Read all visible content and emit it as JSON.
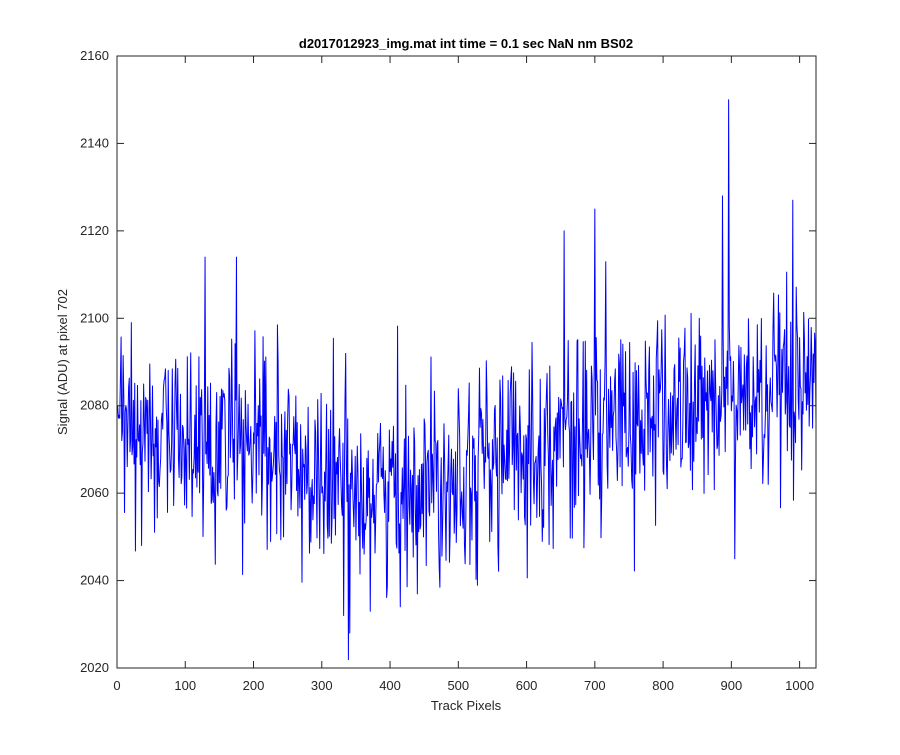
{
  "chart_data": {
    "type": "line",
    "title": "d2017012923_img.mat int time = 0.1 sec  NaN nm BS02",
    "xlabel": "Track Pixels",
    "ylabel": "Signal (ADU) at pixel 702",
    "xlim": [
      0,
      1024
    ],
    "ylim": [
      2020,
      2160
    ],
    "xticks": [
      0,
      100,
      200,
      300,
      400,
      500,
      600,
      700,
      800,
      900,
      1000
    ],
    "yticks": [
      2020,
      2040,
      2060,
      2080,
      2100,
      2120,
      2140,
      2160
    ],
    "grid": false,
    "line_color": "#0000ff",
    "series": [
      {
        "x_start": 1,
        "x_step": 1,
        "count": 1024,
        "trend": [
          [
            0,
            2074
          ],
          [
            100,
            2072
          ],
          [
            200,
            2070
          ],
          [
            300,
            2063
          ],
          [
            350,
            2062
          ],
          [
            400,
            2061
          ],
          [
            450,
            2063
          ],
          [
            500,
            2066
          ],
          [
            600,
            2070
          ],
          [
            700,
            2075
          ],
          [
            800,
            2078
          ],
          [
            900,
            2082
          ],
          [
            1024,
            2080
          ]
        ],
        "noise_std": 11,
        "features": [
          [
            896,
            2150
          ],
          [
            887,
            2128
          ],
          [
            990,
            2127
          ],
          [
            341,
            2028
          ],
          [
            332,
            2032
          ],
          [
            415,
            2034
          ],
          [
            129,
            2114
          ],
          [
            175,
            2114
          ],
          [
            905,
            2045
          ],
          [
            700,
            2125
          ],
          [
            655,
            2120
          ]
        ]
      }
    ]
  }
}
